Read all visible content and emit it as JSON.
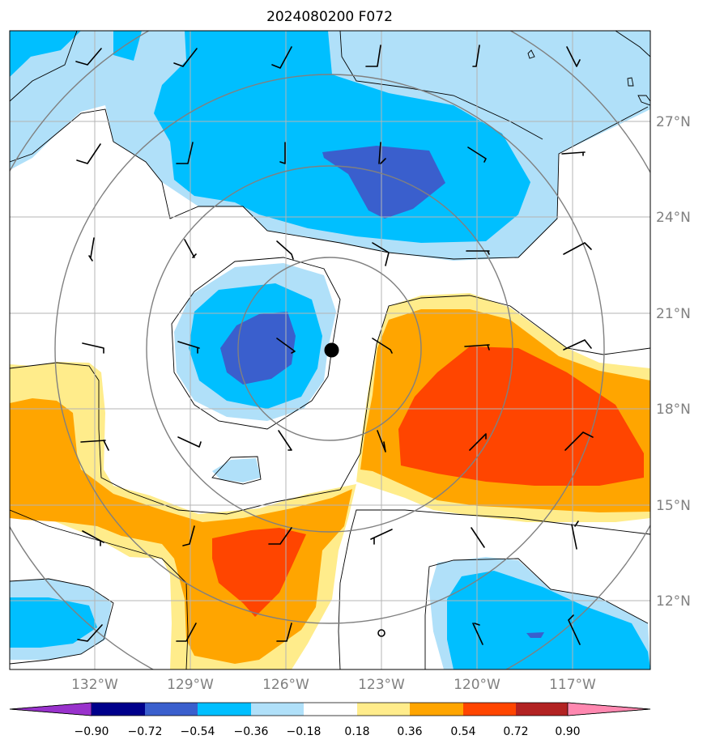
{
  "chart_data": {
    "type": "contourf",
    "title": "2024080200 F072",
    "lat_ticks": [
      "27°N",
      "24°N",
      "21°N",
      "18°N",
      "15°N",
      "12°N"
    ],
    "lon_ticks": [
      "132°W",
      "129°W",
      "126°W",
      "123°W",
      "120°W",
      "117°W"
    ],
    "lon_range": [
      -134.7,
      -114.6
    ],
    "lat_range": [
      9.9,
      29.9
    ],
    "grid": true,
    "colorbar": {
      "orientation": "horizontal",
      "extend": "both",
      "levels": [
        -0.9,
        -0.72,
        -0.54,
        -0.36,
        -0.18,
        0.18,
        0.36,
        0.54,
        0.72,
        0.9
      ],
      "tick_labels": [
        "−0.90",
        "−0.72",
        "−0.54",
        "−0.36",
        "−0.18",
        "0.18",
        "0.36",
        "0.54",
        "0.72",
        "0.90"
      ],
      "colors": [
        "#9932cc",
        "#00008b",
        "#3a5fcd",
        "#00bfff",
        "#b0e0f9",
        "#ffffff",
        "#ffec8b",
        "#ffa500",
        "#ff4500",
        "#b22222",
        "#ff88b0"
      ]
    },
    "storm_center": {
      "lon": -124.6,
      "lat": 19.9
    },
    "fill_colors": {
      "neg_light": "#b0e0f9",
      "neg_mid": "#00bfff",
      "neg_strong": "#3a5fcd",
      "pos_light": "#ffec8b",
      "pos_mid": "#ffa500",
      "pos_strong": "#ff4500"
    }
  }
}
